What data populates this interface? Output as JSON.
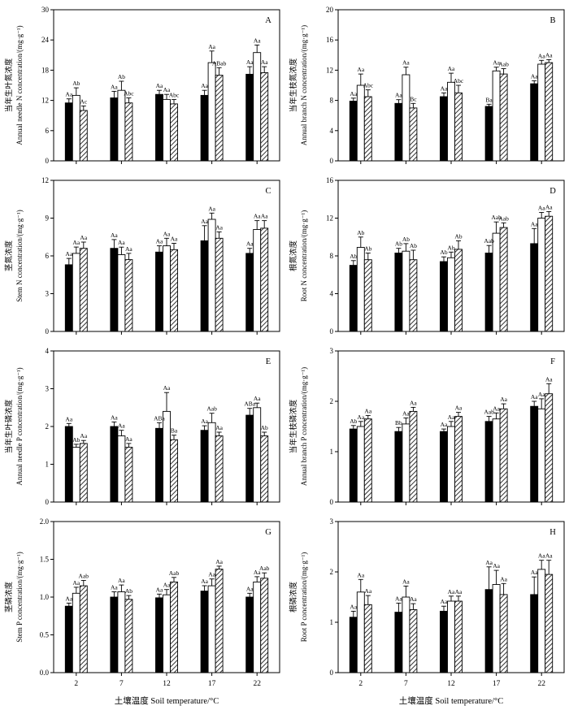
{
  "figure": {
    "x_title": "土壤温度 Soil temperature/°C",
    "background": "#ffffff",
    "axis_color": "#000000",
    "series_styles": [
      "black-filled",
      "white-open",
      "diagonal-hatched"
    ]
  },
  "chart_data": [
    {
      "panel": "A",
      "type": "bar",
      "ylabel_cn": "当年生叶氮浓度",
      "ylabel_en": "Annual needle N concentration/(mg·g⁻¹)",
      "ylim": [
        0,
        30
      ],
      "ytick_step": 6,
      "ytick_decimals": 0,
      "categories": [
        "2",
        "7",
        "12",
        "17",
        "22"
      ],
      "series": [
        {
          "style": "black-filled",
          "values": [
            11.5,
            12.5,
            13.2,
            13.0,
            17.2
          ],
          "errors": [
            0.8,
            1.3,
            0.8,
            1.0,
            1.5
          ],
          "letters": [
            "Aa",
            "Aa",
            "Aa",
            "Aa",
            "Aa"
          ]
        },
        {
          "style": "white-open",
          "values": [
            13.0,
            14.0,
            12.2,
            19.5,
            21.5
          ],
          "errors": [
            1.5,
            1.8,
            1.0,
            2.3,
            1.5
          ],
          "letters": [
            "Ab",
            "Ab",
            "Aa",
            "Aa",
            "Aa"
          ]
        },
        {
          "style": "diagonal-hatched",
          "values": [
            10.0,
            11.5,
            11.3,
            17.0,
            17.5
          ],
          "errors": [
            0.9,
            1.0,
            0.9,
            1.5,
            1.2
          ],
          "letters": [
            "Ac",
            "Abc",
            "Abc",
            "ABab",
            "Aa"
          ]
        }
      ]
    },
    {
      "panel": "B",
      "type": "bar",
      "ylabel_cn": "当年生枝氮浓度",
      "ylabel_en": "Annual branch N concentration/(mg·g⁻¹)",
      "ylim": [
        0,
        20
      ],
      "ytick_step": 4,
      "ytick_decimals": 0,
      "categories": [
        "2",
        "7",
        "12",
        "17",
        "22"
      ],
      "series": [
        {
          "style": "black-filled",
          "values": [
            7.9,
            7.6,
            8.5,
            7.2,
            10.2
          ],
          "errors": [
            0.4,
            0.5,
            0.5,
            0.3,
            0.4
          ],
          "letters": [
            "Aa",
            "Aa",
            "Aa",
            "Ba",
            "Aa"
          ]
        },
        {
          "style": "white-open",
          "values": [
            10.0,
            11.4,
            10.4,
            11.9,
            12.8
          ],
          "errors": [
            1.5,
            1.0,
            1.2,
            0.5,
            0.5
          ],
          "letters": [
            "Aa",
            "Aa",
            "Aa",
            "Aa",
            "Aa"
          ]
        },
        {
          "style": "diagonal-hatched",
          "values": [
            8.5,
            7.0,
            9.0,
            11.5,
            13.0
          ],
          "errors": [
            0.9,
            0.6,
            1.0,
            0.7,
            0.4
          ],
          "letters": [
            "Abc",
            "Bc",
            "Abc",
            "Aab",
            "Aa"
          ]
        }
      ]
    },
    {
      "panel": "C",
      "type": "bar",
      "ylabel_cn": "茎氮浓度",
      "ylabel_en": "Stem N concentration/(mg·g⁻¹)",
      "ylim": [
        0,
        12
      ],
      "ytick_step": 3,
      "ytick_decimals": 0,
      "categories": [
        "2",
        "7",
        "12",
        "17",
        "22"
      ],
      "series": [
        {
          "style": "black-filled",
          "values": [
            5.3,
            6.6,
            6.3,
            7.2,
            6.2
          ],
          "errors": [
            0.5,
            0.7,
            0.5,
            1.2,
            0.4
          ],
          "letters": [
            "Aa",
            "Aa",
            "Aa",
            "Aa",
            "Aa"
          ]
        },
        {
          "style": "white-open",
          "values": [
            6.2,
            6.1,
            6.8,
            8.9,
            8.1
          ],
          "errors": [
            0.5,
            0.6,
            0.6,
            0.5,
            0.7
          ],
          "letters": [
            "Aa",
            "Aa",
            "Aa",
            "Aa",
            "Aa"
          ]
        },
        {
          "style": "diagonal-hatched",
          "values": [
            6.6,
            5.7,
            6.5,
            7.4,
            8.2
          ],
          "errors": [
            0.5,
            0.5,
            0.5,
            0.5,
            0.6
          ],
          "letters": [
            "Aa",
            "Aa",
            "Aa",
            "Aa",
            "Aa"
          ]
        }
      ]
    },
    {
      "panel": "D",
      "type": "bar",
      "ylabel_cn": "根氮浓度",
      "ylabel_en": "Root N concentration/(mg·g⁻¹)",
      "ylim": [
        0,
        16
      ],
      "ytick_step": 4,
      "ytick_decimals": 0,
      "categories": [
        "2",
        "7",
        "12",
        "17",
        "22"
      ],
      "series": [
        {
          "style": "black-filled",
          "values": [
            7.0,
            8.3,
            7.4,
            8.3,
            9.3
          ],
          "errors": [
            0.5,
            0.5,
            0.5,
            0.8,
            1.6
          ],
          "letters": [
            "Ab",
            "Ab",
            "Ab",
            "Aab",
            "Aa"
          ]
        },
        {
          "style": "white-open",
          "values": [
            8.9,
            8.5,
            7.8,
            10.4,
            12.0
          ],
          "errors": [
            1.1,
            0.8,
            0.6,
            1.2,
            0.6
          ],
          "letters": [
            "Ab",
            "Ab",
            "Ab",
            "Aab",
            "Aa"
          ]
        },
        {
          "style": "diagonal-hatched",
          "values": [
            7.6,
            7.6,
            8.7,
            11.0,
            12.2
          ],
          "errors": [
            0.7,
            1.0,
            0.9,
            0.5,
            0.5
          ],
          "letters": [
            "Ab",
            "Ab",
            "Ab",
            "Aab",
            "Aa"
          ]
        }
      ]
    },
    {
      "panel": "E",
      "type": "bar",
      "ylabel_cn": "当年生叶磷浓度",
      "ylabel_en": "Annual needle P concentration/(mg·g⁻¹)",
      "ylim": [
        0,
        4
      ],
      "ytick_step": 1,
      "ytick_decimals": 0,
      "categories": [
        "2",
        "7",
        "12",
        "17",
        "22"
      ],
      "series": [
        {
          "style": "black-filled",
          "values": [
            2.0,
            2.0,
            1.95,
            1.9,
            2.3
          ],
          "errors": [
            0.08,
            0.12,
            0.15,
            0.12,
            0.18
          ],
          "letters": [
            "Aa",
            "Aa",
            "ABa",
            "Aa",
            "ABa"
          ]
        },
        {
          "style": "white-open",
          "values": [
            1.45,
            1.75,
            2.4,
            2.1,
            2.5
          ],
          "errors": [
            0.08,
            0.15,
            0.5,
            0.25,
            0.12
          ],
          "letters": [
            "Ab",
            "Aa",
            "Aa",
            "Aab",
            "Aa"
          ]
        },
        {
          "style": "diagonal-hatched",
          "values": [
            1.55,
            1.45,
            1.65,
            1.75,
            1.75
          ],
          "errors": [
            0.08,
            0.1,
            0.12,
            0.1,
            0.1
          ],
          "letters": [
            "Aa",
            "Aa",
            "Ba",
            "Aa",
            "Ab"
          ]
        }
      ]
    },
    {
      "panel": "F",
      "type": "bar",
      "ylabel_cn": "当年生枝磷浓度",
      "ylabel_en": "Annual branch P concentration/(mg·g⁻¹)",
      "ylim": [
        0,
        3
      ],
      "ytick_step": 1,
      "ytick_decimals": 0,
      "categories": [
        "2",
        "7",
        "12",
        "17",
        "22"
      ],
      "series": [
        {
          "style": "black-filled",
          "values": [
            1.45,
            1.4,
            1.4,
            1.6,
            1.9
          ],
          "errors": [
            0.07,
            0.08,
            0.05,
            0.1,
            0.1
          ],
          "letters": [
            "Ab",
            "Bb",
            "Aa",
            "Aab",
            "Aa"
          ]
        },
        {
          "style": "white-open",
          "values": [
            1.5,
            1.55,
            1.5,
            1.65,
            1.85
          ],
          "errors": [
            0.1,
            0.12,
            0.1,
            0.12,
            0.2
          ],
          "letters": [
            "Aa",
            "Aa",
            "Aa",
            "Aa",
            "Aa"
          ]
        },
        {
          "style": "diagonal-hatched",
          "values": [
            1.65,
            1.8,
            1.7,
            1.85,
            2.15
          ],
          "errors": [
            0.07,
            0.08,
            0.08,
            0.1,
            0.2
          ],
          "letters": [
            "Aa",
            "Aa",
            "Aa",
            "Aa",
            "Aa"
          ]
        }
      ]
    },
    {
      "panel": "G",
      "type": "bar",
      "ylabel_cn": "茎磷浓度",
      "ylabel_en": "Stem P concentration/(mg·g⁻¹)",
      "ylim": [
        0,
        2.0
      ],
      "ytick_step": 0.5,
      "ytick_decimals": 1,
      "categories": [
        "2",
        "7",
        "12",
        "17",
        "22"
      ],
      "series": [
        {
          "style": "black-filled",
          "values": [
            0.88,
            1.0,
            0.99,
            1.08,
            1.0
          ],
          "errors": [
            0.04,
            0.07,
            0.05,
            0.07,
            0.05
          ],
          "letters": [
            "Aa",
            "Aa",
            "Aa",
            "Aa",
            "Aa"
          ]
        },
        {
          "style": "white-open",
          "values": [
            1.05,
            1.07,
            1.03,
            1.15,
            1.2
          ],
          "errors": [
            0.08,
            0.09,
            0.07,
            0.09,
            0.07
          ],
          "letters": [
            "Aa",
            "Aa",
            "Aa",
            "Aa",
            "Aa"
          ]
        },
        {
          "style": "diagonal-hatched",
          "values": [
            1.15,
            0.97,
            1.2,
            1.37,
            1.25
          ],
          "errors": [
            0.07,
            0.05,
            0.06,
            0.04,
            0.07
          ],
          "letters": [
            "Aab",
            "Ab",
            "Aab",
            "Aa",
            "Aab"
          ]
        }
      ]
    },
    {
      "panel": "H",
      "type": "bar",
      "ylabel_cn": "根磷浓度",
      "ylabel_en": "Root P concentration/(mg·g⁻¹)",
      "ylim": [
        0,
        3
      ],
      "ytick_step": 1,
      "ytick_decimals": 0,
      "categories": [
        "2",
        "7",
        "12",
        "17",
        "22"
      ],
      "series": [
        {
          "style": "black-filled",
          "values": [
            1.1,
            1.2,
            1.22,
            1.65,
            1.55
          ],
          "errors": [
            0.12,
            0.18,
            0.1,
            0.45,
            0.35
          ],
          "letters": [
            "Aa",
            "Aa",
            "Aa",
            "Aa",
            "Aa"
          ]
        },
        {
          "style": "white-open",
          "values": [
            1.6,
            1.5,
            1.42,
            1.75,
            2.05
          ],
          "errors": [
            0.25,
            0.22,
            0.1,
            0.28,
            0.18
          ],
          "letters": [
            "Aa",
            "Aa",
            "Aa",
            "Aa",
            "Aa"
          ]
        },
        {
          "style": "diagonal-hatched",
          "values": [
            1.35,
            1.25,
            1.42,
            1.55,
            1.95
          ],
          "errors": [
            0.18,
            0.12,
            0.1,
            0.22,
            0.28
          ],
          "letters": [
            "Aa",
            "Aa",
            "Aa",
            "Aa",
            "Aa"
          ]
        }
      ]
    }
  ]
}
